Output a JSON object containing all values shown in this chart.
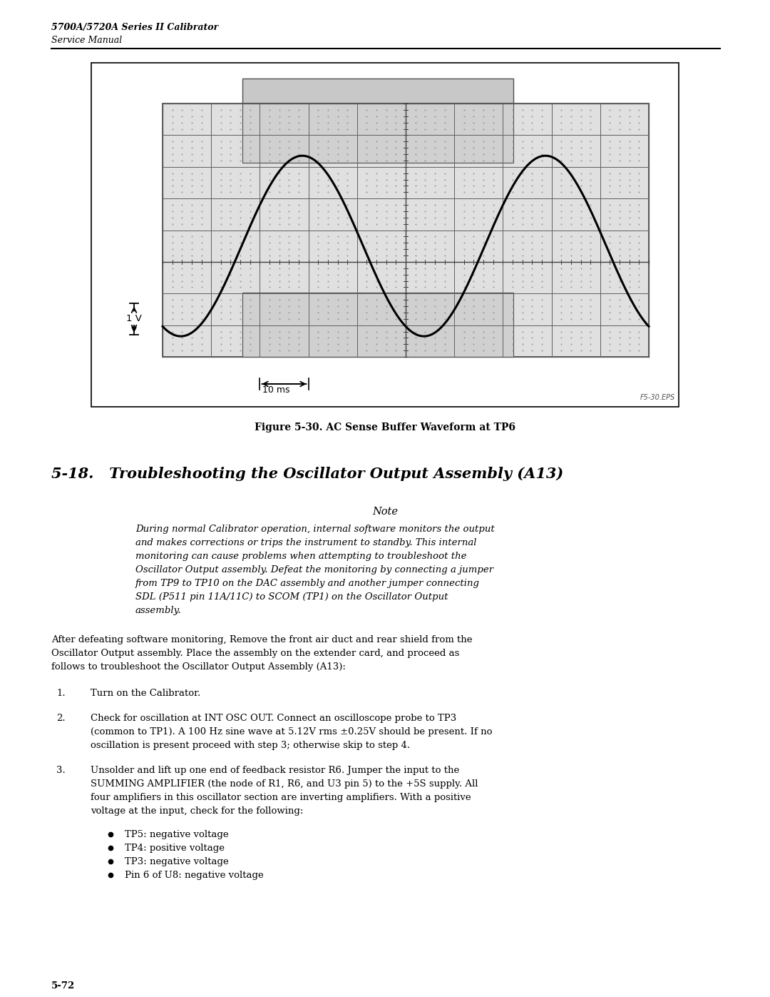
{
  "header_line1": "5700A/5720A Series II Calibrator",
  "header_line2": "Service Manual",
  "figure_caption": "Figure 5-30. AC Sense Buffer Waveform at TP6",
  "figure_label": "F5-30.EPS",
  "section_title": "5-18.   Troubleshooting the Oscillator Output Assembly (A13)",
  "note_label": "Note",
  "note_lines": [
    "During normal Calibrator operation, internal software monitors the output",
    "and makes corrections or trips the instrument to standby. This internal",
    "monitoring can cause problems when attempting to troubleshoot the",
    "Oscillator Output assembly. Defeat the monitoring by connecting a jumper",
    "from TP9 to TP10 on the DAC assembly and another jumper connecting",
    "SDL (P511 pin 11A/11C) to SCOM (TP1) on the Oscillator Output",
    "assembly."
  ],
  "para1_lines": [
    "After defeating software monitoring, Remove the front air duct and rear shield from the",
    "Oscillator Output assembly. Place the assembly on the extender card, and proceed as",
    "follows to troubleshoot the Oscillator Output Assembly (A13):"
  ],
  "step1": "Turn on the Calibrator.",
  "step2_lines": [
    "Check for oscillation at INT OSC OUT. Connect an oscilloscope probe to TP3",
    "(common to TP1). A 100 Hz sine wave at 5.12V rms ±0.25V should be present. If no",
    "oscillation is present proceed with step 3; otherwise skip to step 4."
  ],
  "step3_lines": [
    "Unsolder and lift up one end of feedback resistor R6. Jumper the input to the",
    "SUMMING AMPLIFIER (the node of R1, R6, and U3 pin 5) to the +5S supply. All",
    "four amplifiers in this oscillator section are inverting amplifiers. With a positive",
    "voltage at the input, check for the following:"
  ],
  "bullets": [
    "TP5: negative voltage",
    "TP4: positive voltage",
    "TP3: negative voltage",
    "Pin 6 of U8: negative voltage"
  ],
  "page_number": "5-72",
  "volt_label": "1 V",
  "time_label": "10 ms",
  "bg_color": "#ffffff"
}
